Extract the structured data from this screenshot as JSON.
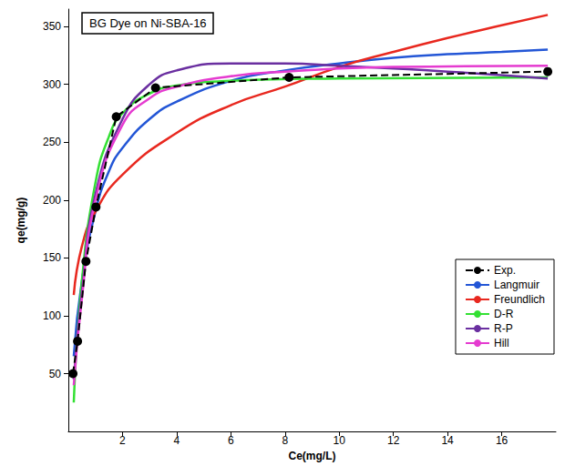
{
  "chart_data": {
    "type": "line",
    "title": "BG Dye on Ni-SBA-16",
    "x_label": "Ce(mg/L)",
    "y_label": "qe(mg/g)",
    "xlim": [
      0,
      18
    ],
    "xticks": [
      2,
      4,
      6,
      8,
      10,
      12,
      14,
      16
    ],
    "ylim": [
      0,
      365
    ],
    "yticks": [
      50,
      100,
      150,
      200,
      250,
      300,
      350
    ],
    "grid": false,
    "legend": "right",
    "series": [
      {
        "name": "Exp.",
        "color": "#000000",
        "marker": "circle",
        "line_style": "dashed",
        "x": [
          0.17,
          0.34,
          0.65,
          1.02,
          1.77,
          3.22,
          8.15,
          17.7
        ],
        "values": [
          50,
          78,
          147,
          194,
          272,
          297,
          306,
          311
        ]
      },
      {
        "name": "Langmuir",
        "color": "#2356d6",
        "marker": "none",
        "line_style": "solid",
        "x": [
          0.2,
          0.5,
          1,
          1.5,
          2,
          3,
          4,
          6,
          8,
          10,
          12,
          14,
          16,
          17.7
        ],
        "values": [
          65,
          130,
          190,
          225,
          245,
          270,
          285,
          303,
          312,
          318,
          323,
          326,
          328,
          330
        ]
      },
      {
        "name": "Freundlich",
        "color": "#e8281f",
        "marker": "none",
        "line_style": "solid",
        "x": [
          0.2,
          0.5,
          1,
          2,
          4,
          6,
          8,
          10,
          12,
          14,
          16,
          17.7
        ],
        "values": [
          118,
          160,
          190,
          222,
          258,
          282,
          298,
          315,
          328,
          340,
          351,
          360
        ]
      },
      {
        "name": "D-R",
        "color": "#33e033",
        "marker": "none",
        "line_style": "solid",
        "x": [
          0.2,
          0.5,
          1,
          1.5,
          2,
          3,
          4,
          6,
          10,
          17.7
        ],
        "values": [
          25,
          130,
          215,
          255,
          275,
          292,
          299,
          303,
          305,
          306
        ]
      },
      {
        "name": "R-P",
        "color": "#6a2fa0",
        "marker": "none",
        "line_style": "solid",
        "x": [
          0.2,
          0.5,
          1,
          2,
          3,
          4,
          6,
          8,
          10,
          14,
          17.7
        ],
        "values": [
          45,
          120,
          205,
          270,
          300,
          312,
          318,
          318,
          316,
          311,
          305
        ]
      },
      {
        "name": "Hill",
        "color": "#e53bd0",
        "marker": "none",
        "line_style": "solid",
        "x": [
          0.2,
          0.5,
          1,
          2,
          3,
          4,
          6,
          8,
          12,
          17.7
        ],
        "values": [
          40,
          115,
          200,
          265,
          288,
          298,
          307,
          311,
          315,
          316
        ]
      }
    ]
  }
}
